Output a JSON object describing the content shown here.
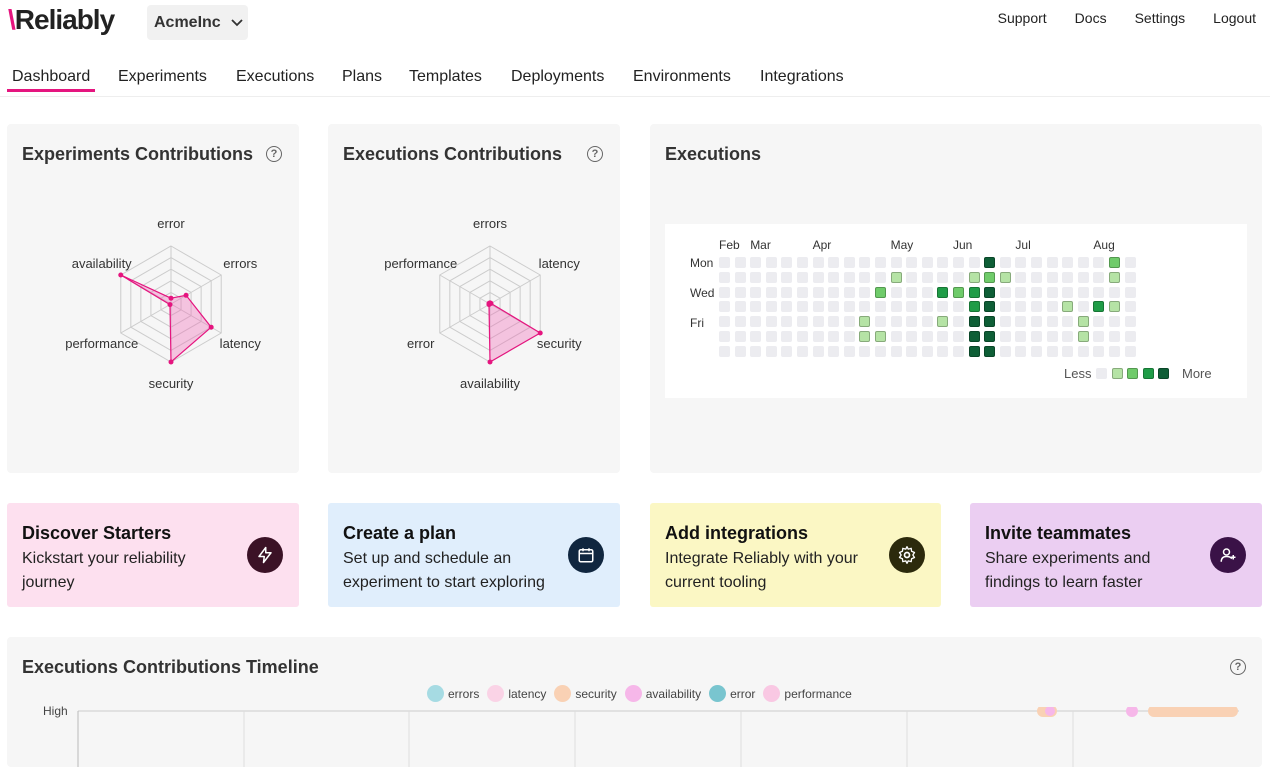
{
  "app": {
    "logo_prefix": "\\",
    "logo_rest": "Reliably",
    "org": "AcmeInc"
  },
  "toplinks": [
    "Support",
    "Docs",
    "Settings",
    "Logout"
  ],
  "tabs": [
    "Dashboard",
    "Experiments",
    "Executions",
    "Plans",
    "Templates",
    "Deployments",
    "Environments",
    "Integrations"
  ],
  "active_tab": "Dashboard",
  "experiments_contrib": {
    "title": "Experiments Contributions",
    "axes": [
      "error",
      "errors",
      "latency",
      "security",
      "performance",
      "availability"
    ],
    "values": [
      0.1,
      0.3,
      0.8,
      1.0,
      0.0,
      1.0
    ]
  },
  "executions_contrib": {
    "title": "Executions Contributions",
    "axes": [
      "errors",
      "latency",
      "security",
      "availability",
      "error",
      "performance"
    ],
    "values": [
      0.0,
      0.0,
      1.0,
      1.0,
      0.0,
      0.0
    ]
  },
  "executions_heatmap": {
    "title": "Executions",
    "months": [
      "Feb",
      "Mar",
      "Apr",
      "May",
      "Jun",
      "Jul",
      "Aug"
    ],
    "days": [
      "Mon",
      "Wed",
      "Fri"
    ],
    "legend_less": "Less",
    "legend_more": "More",
    "levels": [
      [
        0,
        0,
        0,
        0,
        0,
        0,
        0,
        0,
        0,
        0,
        0,
        0,
        0,
        0,
        0,
        0,
        0,
        4,
        0,
        0,
        0,
        0,
        0,
        0,
        0,
        2,
        0
      ],
      [
        0,
        0,
        0,
        0,
        0,
        0,
        0,
        0,
        0,
        0,
        0,
        1,
        0,
        0,
        0,
        0,
        1,
        2,
        1,
        0,
        0,
        0,
        0,
        0,
        0,
        1,
        0
      ],
      [
        0,
        0,
        0,
        0,
        0,
        0,
        0,
        0,
        0,
        0,
        2,
        0,
        0,
        0,
        3,
        2,
        3,
        4,
        0,
        0,
        0,
        0,
        0,
        0,
        0,
        0,
        0
      ],
      [
        0,
        0,
        0,
        0,
        0,
        0,
        0,
        0,
        0,
        0,
        0,
        0,
        0,
        0,
        0,
        0,
        3,
        4,
        0,
        0,
        0,
        0,
        1,
        0,
        3,
        1,
        0
      ],
      [
        0,
        0,
        0,
        0,
        0,
        0,
        0,
        0,
        0,
        1,
        0,
        0,
        0,
        0,
        1,
        0,
        4,
        4,
        0,
        0,
        0,
        0,
        0,
        1,
        0,
        0,
        0
      ],
      [
        0,
        0,
        0,
        0,
        0,
        0,
        0,
        0,
        0,
        1,
        1,
        0,
        0,
        0,
        0,
        0,
        4,
        4,
        0,
        0,
        0,
        0,
        0,
        1,
        0,
        0,
        0
      ],
      [
        0,
        0,
        0,
        0,
        0,
        0,
        0,
        0,
        0,
        0,
        0,
        0,
        0,
        0,
        0,
        0,
        4,
        4,
        0,
        0,
        0,
        0,
        0,
        0,
        0,
        0,
        0
      ]
    ],
    "level_colors": [
      "#ececf0",
      "#b5e3a5",
      "#6fcb6a",
      "#1f9c47",
      "#0e5e36"
    ]
  },
  "cards": [
    {
      "title": "Discover Starters",
      "desc": "Kickstart your reliability journey",
      "icon": "lightning-icon",
      "bg": "#fde0ef",
      "icon_bg": "#3b1226"
    },
    {
      "title": "Create a plan",
      "desc": "Set up and schedule an experiment to start exploring",
      "icon": "calendar-icon",
      "bg": "#e0eefc",
      "icon_bg": "#10263f"
    },
    {
      "title": "Add integrations",
      "desc": "Integrate Reliably with your current tooling",
      "icon": "gear-icon",
      "bg": "#fbf7c4",
      "icon_bg": "#2c2a0c"
    },
    {
      "title": "Invite teammates",
      "desc": "Share experiments and findings to learn faster",
      "icon": "add-user-icon",
      "bg": "#ebcef2",
      "icon_bg": "#3a1247"
    }
  ],
  "timeline": {
    "title": "Executions Contributions Timeline",
    "legend": [
      {
        "name": "errors",
        "color": "#a6dbe3"
      },
      {
        "name": "latency",
        "color": "#fad3e6"
      },
      {
        "name": "security",
        "color": "#f9d1b4"
      },
      {
        "name": "availability",
        "color": "#f6b7e9"
      },
      {
        "name": "error",
        "color": "#79c5cf"
      },
      {
        "name": "performance",
        "color": "#f9c8e3"
      }
    ],
    "y_label": "High"
  },
  "accent": "#e5157f"
}
